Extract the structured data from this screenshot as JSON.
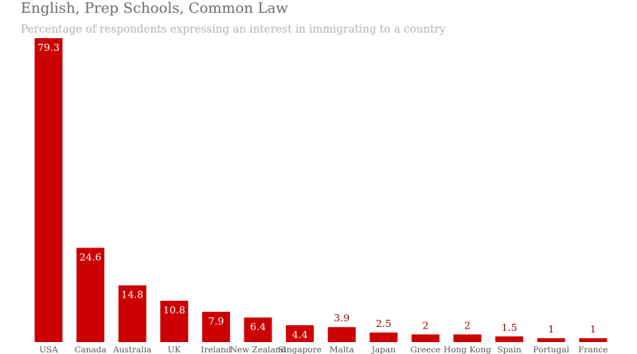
{
  "chart_data": {
    "type": "bar",
    "title": "English, Prep Schools, Common Law",
    "subtitle": "Percentage of respondents expressing an interest in immigrating to a country",
    "xlabel": "",
    "ylabel": "",
    "ylim": [
      0,
      79.3
    ],
    "grid": false,
    "legend": "none",
    "bar_color": "#cc0000",
    "inside_label_color": "#ffffff",
    "outside_label_color": "#a30a0a",
    "tick_color": "#555555",
    "categories": [
      "USA",
      "Canada",
      "Australia",
      "UK",
      "Ireland",
      "New Zealand",
      "Singapore",
      "Malta",
      "Japan",
      "Greece",
      "Hong Kong",
      "Spain",
      "Portugal",
      "France"
    ],
    "values": [
      79.3,
      24.6,
      14.8,
      10.8,
      7.9,
      6.4,
      4.4,
      3.9,
      2.5,
      2,
      2,
      1.5,
      1,
      1
    ],
    "value_labels": [
      "79.3",
      "24.6",
      "14.8",
      "10.8",
      "7.9",
      "6.4",
      "4.4",
      "3.9",
      "2.5",
      "2",
      "2",
      "1.5",
      "1",
      "1"
    ]
  }
}
